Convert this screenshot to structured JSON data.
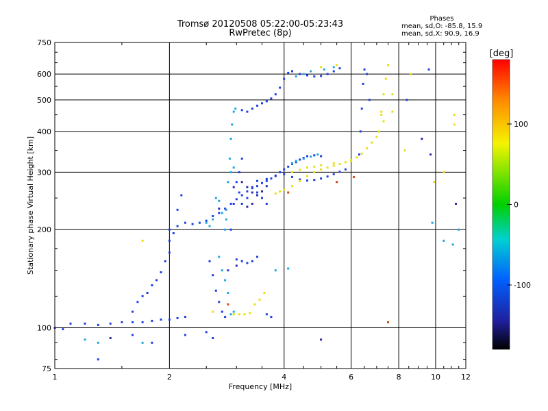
{
  "header": {
    "title_line1": "Tromsø 20120508 05:22:00-05:23:43",
    "title_line2": "RwPretec (8p)"
  },
  "phases_box": {
    "heading": "Phases",
    "line_o": "mean, sd,O: -85.8, 15.9",
    "line_x": "mean, sd,X: 90.9, 16.9"
  },
  "colorbar": {
    "label": "[deg]",
    "tick_labels": [
      "100",
      "0",
      "-100"
    ],
    "tick_values": [
      100,
      0,
      -100
    ],
    "range": [
      -180,
      180
    ]
  },
  "colors": {
    "o_mode": "#1f3fe6",
    "x_mode": "#e8e012",
    "cyan_traces": "#1ea8e0",
    "colorbar_stops": [
      "#ff0000",
      "#ff8a00",
      "#f4f400",
      "#00d000",
      "#00d0d0",
      "#0060ff",
      "#2020a0",
      "#000000"
    ]
  },
  "chart_data": {
    "type": "scatter",
    "xlabel": "Frequency [MHz]",
    "ylabel": "Stationary phase Virtual Height [km]",
    "xscale": "log",
    "yscale": "log",
    "xlim": [
      1,
      12
    ],
    "ylim": [
      75,
      750
    ],
    "xticks": [
      1,
      2,
      4,
      6,
      8,
      10,
      12
    ],
    "xtick_labels": [
      "1",
      "2",
      "4",
      "6",
      "8",
      "10",
      "12"
    ],
    "yticks": [
      75,
      100,
      200,
      300,
      400,
      500,
      600,
      750
    ],
    "ytick_labels": [
      "75",
      "100",
      "200",
      "300",
      "400",
      "500",
      "600",
      "750"
    ],
    "grid": true,
    "series": [
      {
        "color": "#1f3fe6",
        "points": [
          [
            1.0,
            100
          ],
          [
            1.05,
            99
          ],
          [
            1.1,
            103
          ],
          [
            1.2,
            103
          ],
          [
            1.3,
            102
          ],
          [
            1.4,
            103
          ],
          [
            1.5,
            104
          ],
          [
            1.6,
            104
          ],
          [
            1.7,
            104
          ],
          [
            1.8,
            105
          ],
          [
            1.9,
            106
          ],
          [
            2.0,
            106
          ],
          [
            2.1,
            107
          ],
          [
            2.2,
            108
          ],
          [
            1.6,
            112
          ],
          [
            1.65,
            120
          ],
          [
            1.7,
            125
          ],
          [
            1.75,
            128
          ],
          [
            1.8,
            135
          ],
          [
            1.85,
            140
          ],
          [
            1.9,
            148
          ],
          [
            1.95,
            160
          ],
          [
            2.0,
            170
          ],
          [
            2.0,
            185
          ],
          [
            2.0,
            200
          ],
          [
            2.05,
            195
          ],
          [
            2.1,
            205
          ],
          [
            2.1,
            230
          ],
          [
            2.15,
            255
          ],
          [
            2.2,
            210
          ],
          [
            2.3,
            208
          ],
          [
            2.4,
            210
          ],
          [
            2.5,
            213
          ],
          [
            2.6,
            220
          ],
          [
            2.7,
            225
          ],
          [
            2.8,
            232
          ],
          [
            2.9,
            240
          ],
          [
            3.0,
            248
          ],
          [
            3.1,
            255
          ],
          [
            3.2,
            262
          ],
          [
            3.3,
            268
          ],
          [
            3.4,
            272
          ],
          [
            3.5,
            278
          ],
          [
            3.6,
            282
          ],
          [
            3.7,
            287
          ],
          [
            3.8,
            293
          ],
          [
            3.9,
            300
          ],
          [
            4.0,
            306
          ],
          [
            4.1,
            312
          ],
          [
            4.2,
            318
          ],
          [
            4.3,
            322
          ],
          [
            4.4,
            328
          ],
          [
            4.5,
            332
          ],
          [
            4.6,
            336
          ],
          [
            4.8,
            338
          ],
          [
            5.0,
            336
          ],
          [
            3.4,
            282
          ],
          [
            3.6,
            286
          ],
          [
            3.8,
            292
          ],
          [
            4.0,
            296
          ],
          [
            4.2,
            290
          ],
          [
            4.4,
            285
          ],
          [
            4.6,
            283
          ],
          [
            4.8,
            284
          ],
          [
            5.0,
            287
          ],
          [
            5.2,
            291
          ],
          [
            5.4,
            296
          ],
          [
            5.6,
            301
          ],
          [
            5.8,
            306
          ],
          [
            2.55,
            160
          ],
          [
            2.6,
            145
          ],
          [
            2.65,
            130
          ],
          [
            2.7,
            120
          ],
          [
            2.75,
            112
          ],
          [
            2.8,
            108
          ],
          [
            2.85,
            150
          ],
          [
            2.9,
            200
          ],
          [
            2.95,
            240
          ],
          [
            3.0,
            280
          ],
          [
            3.05,
            300
          ],
          [
            3.1,
            330
          ],
          [
            3.05,
            260
          ],
          [
            3.1,
            240
          ],
          [
            3.2,
            250
          ],
          [
            3.3,
            270
          ],
          [
            3.4,
            260
          ],
          [
            3.5,
            250
          ],
          [
            3.6,
            240
          ],
          [
            3.0,
            162
          ],
          [
            3.1,
            160
          ],
          [
            3.2,
            158
          ],
          [
            3.3,
            160
          ],
          [
            3.4,
            165
          ],
          [
            3.6,
            110
          ],
          [
            3.7,
            108
          ],
          [
            3.1,
            465
          ],
          [
            3.2,
            460
          ],
          [
            3.3,
            470
          ],
          [
            3.4,
            480
          ],
          [
            3.5,
            488
          ],
          [
            3.6,
            495
          ],
          [
            3.7,
            505
          ],
          [
            3.8,
            520
          ],
          [
            3.9,
            545
          ],
          [
            4.0,
            580
          ],
          [
            4.1,
            605
          ],
          [
            4.2,
            612
          ],
          [
            4.4,
            600
          ],
          [
            4.6,
            595
          ],
          [
            4.8,
            590
          ],
          [
            5.0,
            592
          ],
          [
            5.2,
            600
          ],
          [
            5.4,
            612
          ],
          [
            5.6,
            625
          ],
          [
            6.3,
            340
          ],
          [
            6.35,
            400
          ],
          [
            6.4,
            470
          ],
          [
            6.45,
            560
          ],
          [
            6.5,
            620
          ],
          [
            6.6,
            600
          ],
          [
            6.7,
            500
          ],
          [
            2.2,
            95
          ],
          [
            2.5,
            97
          ],
          [
            2.6,
            93
          ],
          [
            1.6,
            95
          ],
          [
            1.3,
            80
          ],
          [
            1.8,
            90
          ],
          [
            8.4,
            500
          ],
          [
            9.6,
            620
          ]
        ]
      },
      {
        "color": "#e8e012",
        "points": [
          [
            2.95,
            110
          ],
          [
            3.05,
            110
          ],
          [
            3.15,
            110
          ],
          [
            3.25,
            111
          ],
          [
            3.35,
            118
          ],
          [
            3.45,
            122
          ],
          [
            3.55,
            128
          ],
          [
            3.8,
            258
          ],
          [
            3.9,
            262
          ],
          [
            4.0,
            265
          ],
          [
            4.2,
            272
          ],
          [
            4.4,
            282
          ],
          [
            4.6,
            292
          ],
          [
            4.8,
            300
          ],
          [
            5.0,
            306
          ],
          [
            5.2,
            310
          ],
          [
            5.4,
            314
          ],
          [
            5.6,
            318
          ],
          [
            5.8,
            322
          ],
          [
            6.0,
            327
          ],
          [
            6.2,
            333
          ],
          [
            6.4,
            342
          ],
          [
            6.6,
            355
          ],
          [
            6.8,
            370
          ],
          [
            7.0,
            385
          ],
          [
            7.1,
            400
          ],
          [
            7.2,
            450
          ],
          [
            7.3,
            520
          ],
          [
            7.4,
            580
          ],
          [
            7.5,
            640
          ],
          [
            7.2,
            460
          ],
          [
            7.3,
            430
          ],
          [
            4.2,
            300
          ],
          [
            4.4,
            305
          ],
          [
            4.6,
            310
          ],
          [
            4.8,
            312
          ],
          [
            5.0,
            315
          ],
          [
            5.4,
            320
          ],
          [
            6.0,
            325
          ],
          [
            5.0,
            630
          ],
          [
            5.5,
            640
          ],
          [
            7.7,
            520
          ],
          [
            7.7,
            460
          ],
          [
            8.3,
            350
          ],
          [
            8.6,
            600
          ],
          [
            9.9,
            280
          ],
          [
            11.2,
            450
          ],
          [
            11.2,
            420
          ],
          [
            10.5,
            300
          ],
          [
            1.7,
            185
          ],
          [
            2.6,
            112
          ]
        ]
      },
      {
        "color": "#1ea8e0",
        "points": [
          [
            2.8,
            200
          ],
          [
            2.82,
            230
          ],
          [
            2.85,
            280
          ],
          [
            2.88,
            330
          ],
          [
            2.9,
            380
          ],
          [
            2.92,
            420
          ],
          [
            2.95,
            460
          ],
          [
            2.98,
            470
          ],
          [
            2.82,
            215
          ],
          [
            2.75,
            225
          ],
          [
            2.7,
            245
          ],
          [
            2.65,
            250
          ],
          [
            2.9,
            300
          ],
          [
            2.95,
            310
          ],
          [
            2.5,
            210
          ],
          [
            2.55,
            205
          ],
          [
            2.6,
            215
          ],
          [
            2.7,
            165
          ],
          [
            2.75,
            150
          ],
          [
            2.8,
            140
          ],
          [
            2.85,
            128
          ],
          [
            2.9,
            110
          ],
          [
            2.95,
            112
          ],
          [
            4.2,
            320
          ],
          [
            4.3,
            325
          ],
          [
            4.5,
            330
          ],
          [
            4.7,
            335
          ],
          [
            4.9,
            340
          ],
          [
            4.3,
            590
          ],
          [
            4.5,
            600
          ],
          [
            4.7,
            612
          ],
          [
            5.1,
            620
          ],
          [
            5.4,
            630
          ],
          [
            3.8,
            150
          ],
          [
            4.1,
            152
          ],
          [
            1.2,
            92
          ],
          [
            1.3,
            90
          ],
          [
            1.7,
            90
          ],
          [
            9.8,
            210
          ],
          [
            10.5,
            185
          ],
          [
            11.1,
            180
          ],
          [
            11.5,
            200
          ]
        ]
      },
      {
        "color": "#2b2ba8",
        "points": [
          [
            3.1,
            280
          ],
          [
            3.2,
            270
          ],
          [
            3.3,
            260
          ],
          [
            3.4,
            255
          ],
          [
            3.5,
            262
          ],
          [
            3.6,
            272
          ],
          [
            3.3,
            240
          ],
          [
            3.2,
            235
          ],
          [
            2.95,
            270
          ],
          [
            2.7,
            232
          ],
          [
            3.0,
            155
          ],
          [
            9.2,
            380
          ],
          [
            11.3,
            240
          ],
          [
            9.7,
            340
          ],
          [
            5.0,
            92
          ],
          [
            1.4,
            93
          ]
        ]
      },
      {
        "color": "#d04a10",
        "points": [
          [
            7.5,
            104
          ],
          [
            5.5,
            280
          ],
          [
            6.1,
            290
          ],
          [
            4.1,
            260
          ],
          [
            2.85,
            118
          ]
        ]
      }
    ]
  }
}
